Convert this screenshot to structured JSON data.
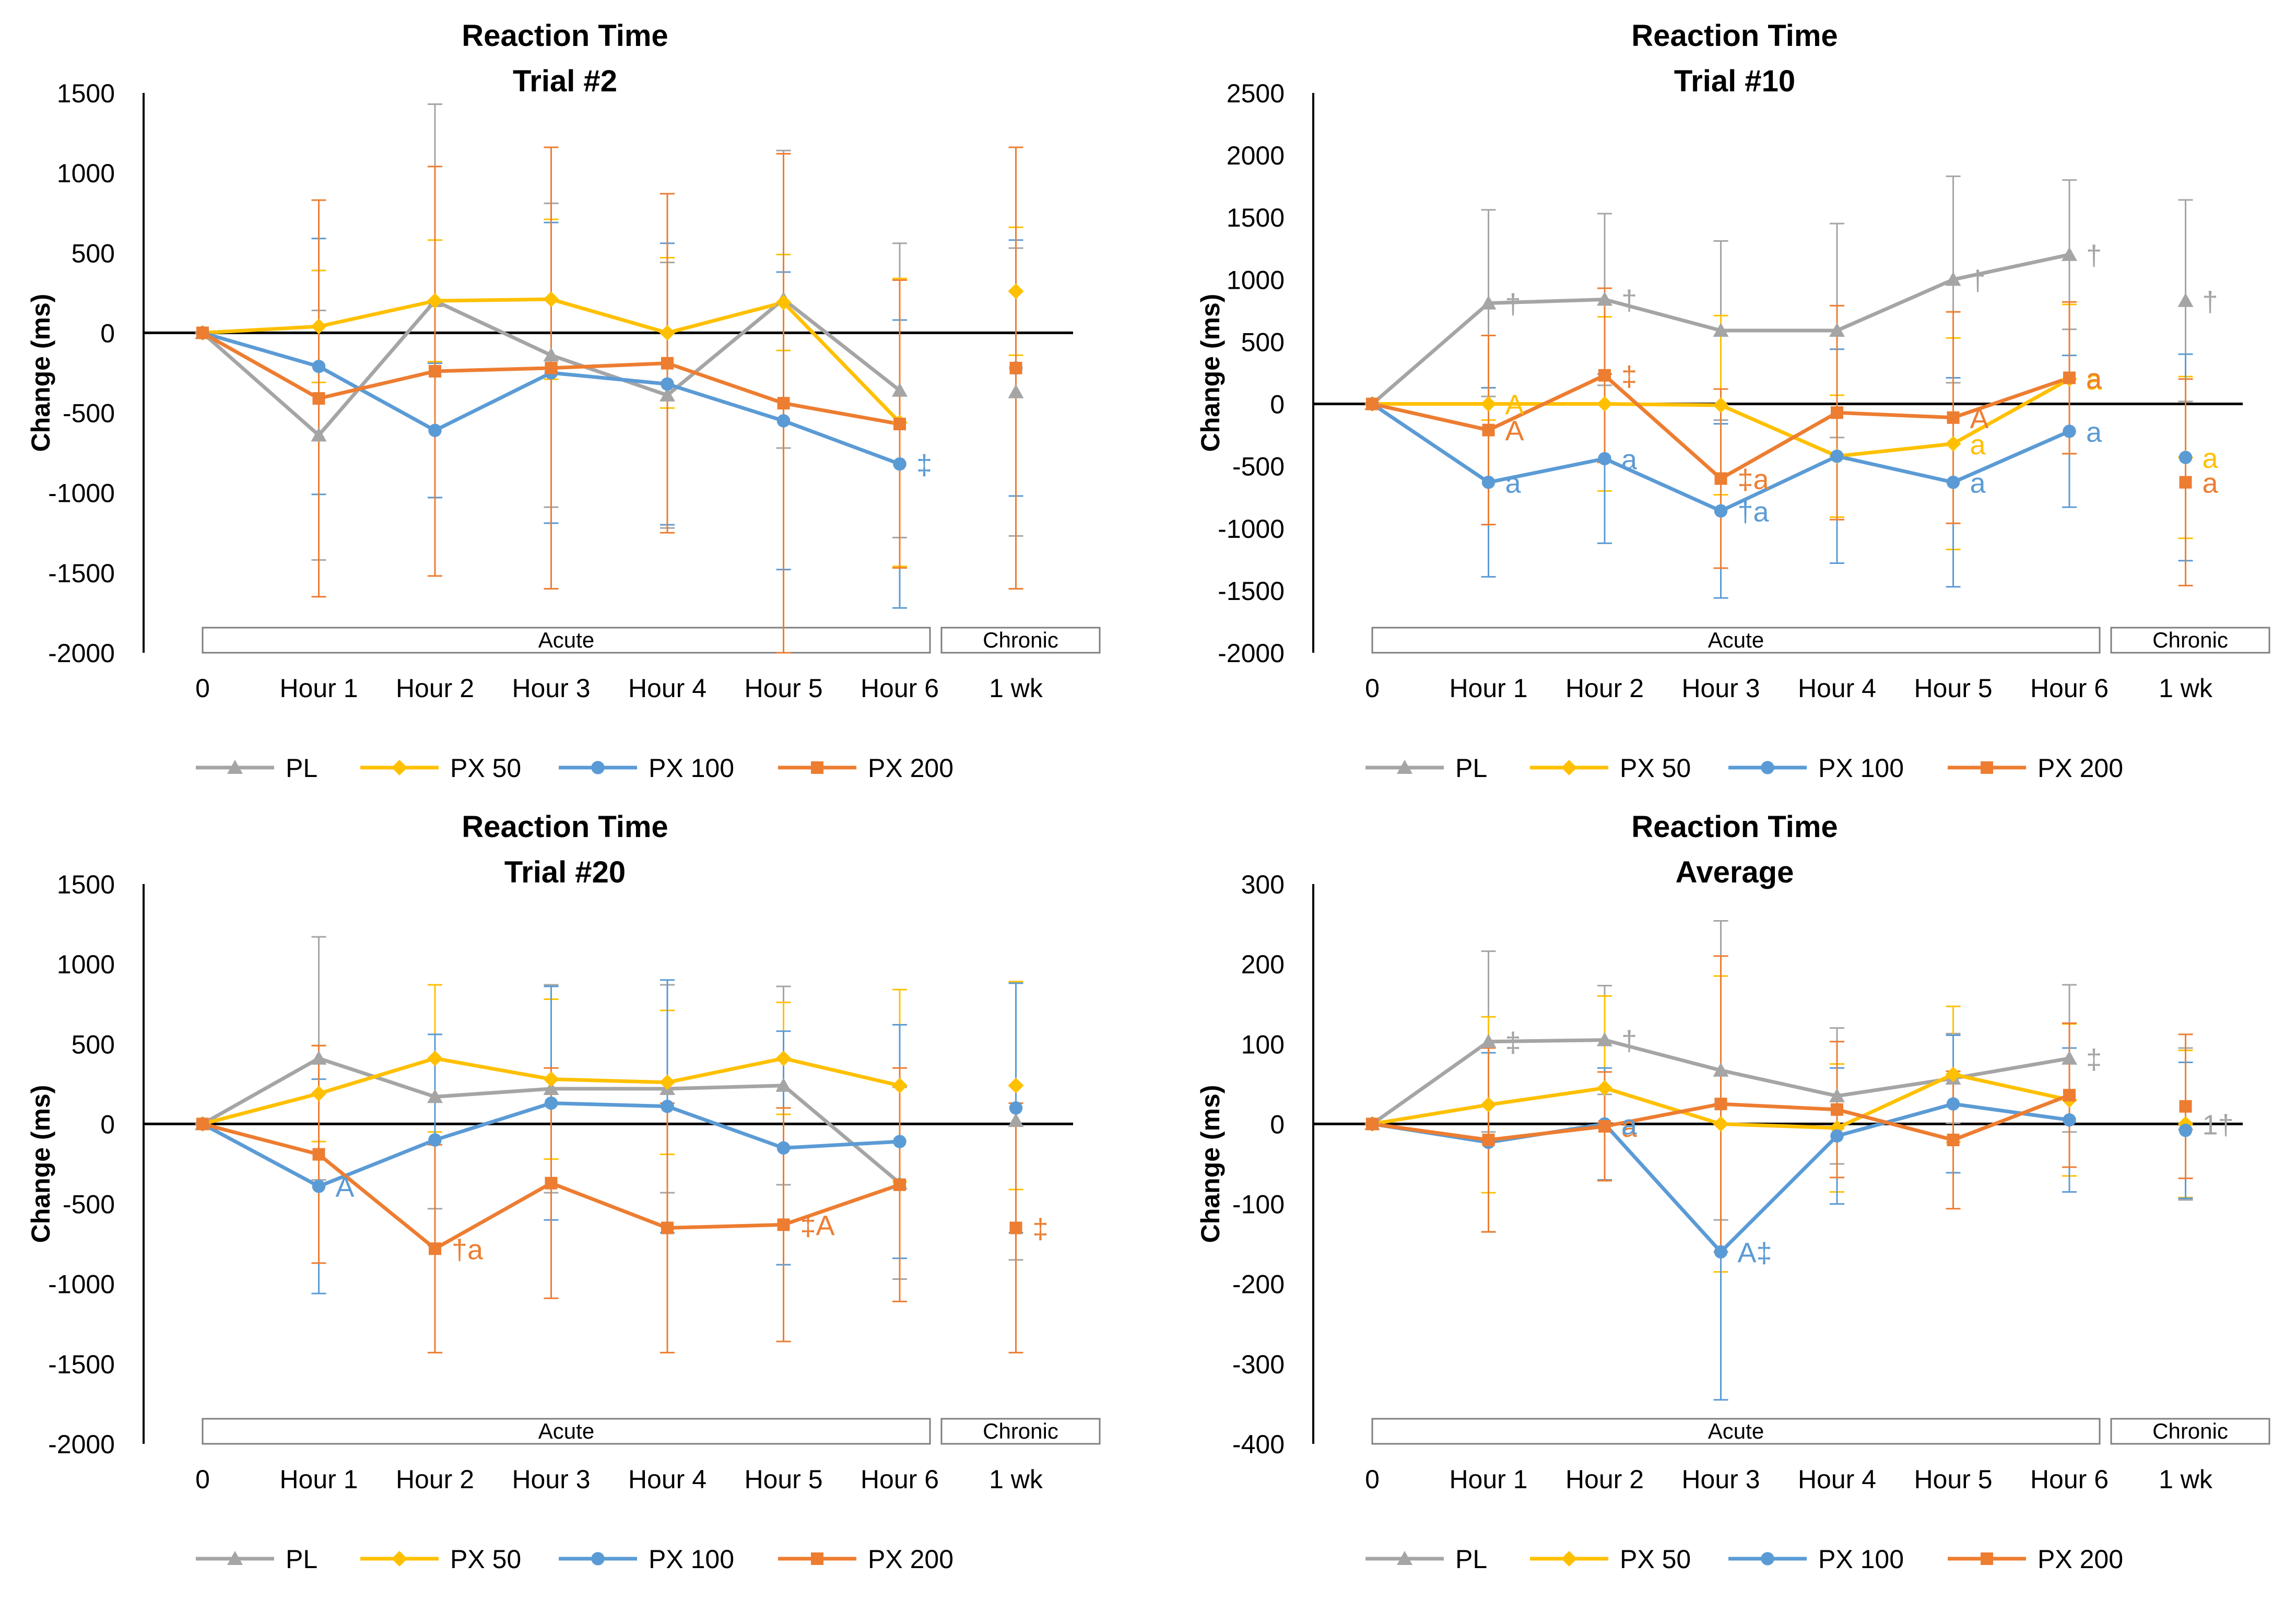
{
  "colors": {
    "PL": "#A5A5A5",
    "PX 50": "#FFC000",
    "PX 100": "#5B9BD5",
    "PX 200": "#ED7D31"
  },
  "chart_data": [
    {
      "type": "line",
      "title": "Reaction Time",
      "subtitle": "Trial #2",
      "ylabel": "Change (ms)",
      "ylim": [
        -2000,
        1500
      ],
      "yticks": [
        -2000,
        -1500,
        -1000,
        -500,
        0,
        500,
        1000,
        1500
      ],
      "categories": [
        "0",
        "Hour 1",
        "Hour 2",
        "Hour 3",
        "Hour 4",
        "Hour 5",
        "Hour 6",
        "1 wk"
      ],
      "groups": {
        "acute": "Acute",
        "chronic": "Chronic"
      },
      "series": [
        {
          "name": "PL",
          "values": [
            0,
            -640,
            200,
            -140,
            -390,
            210,
            -360,
            -370
          ],
          "err": [
            0,
            780,
            1230,
            950,
            830,
            930,
            920,
            900
          ]
        },
        {
          "name": "PX 50",
          "values": [
            0,
            40,
            200,
            210,
            0,
            190,
            -560,
            260
          ],
          "err": [
            0,
            350,
            380,
            500,
            470,
            300,
            900,
            400
          ]
        },
        {
          "name": "PX 100",
          "values": [
            0,
            -210,
            -610,
            -250,
            -320,
            -550,
            -820,
            -220
          ],
          "err": [
            0,
            800,
            420,
            940,
            880,
            930,
            900,
            800
          ]
        },
        {
          "name": "PX 200",
          "values": [
            0,
            -410,
            -240,
            -220,
            -190,
            -440,
            -570,
            -220
          ],
          "err": [
            0,
            1240,
            1280,
            1380,
            1060,
            1560,
            900,
            1380
          ]
        }
      ],
      "annotations": [
        {
          "text": "‡",
          "series": "PX 100",
          "index": 6
        }
      ]
    },
    {
      "type": "line",
      "title": "Reaction Time",
      "subtitle": "Trial #10",
      "ylabel": "Change (ms)",
      "ylim": [
        -2000,
        2500
      ],
      "yticks": [
        -2000,
        -1500,
        -1000,
        -500,
        0,
        500,
        1000,
        1500,
        2000,
        2500
      ],
      "categories": [
        "0",
        "Hour 1",
        "Hour 2",
        "Hour 3",
        "Hour 4",
        "Hour 5",
        "Hour 6",
        "1 wk"
      ],
      "groups": {
        "acute": "Acute",
        "chronic": "Chronic"
      },
      "series": [
        {
          "name": "PL",
          "values": [
            0,
            810,
            840,
            590,
            590,
            1000,
            1200,
            830
          ],
          "err": [
            0,
            750,
            690,
            720,
            860,
            830,
            600,
            810
          ]
        },
        {
          "name": "PX 50",
          "values": [
            0,
            0,
            0,
            -10,
            -420,
            -320,
            200,
            -430
          ],
          "err": [
            0,
            130,
            700,
            720,
            490,
            850,
            600,
            650
          ]
        },
        {
          "name": "PX 100",
          "values": [
            0,
            -630,
            -440,
            -860,
            -420,
            -630,
            -220,
            -430
          ],
          "err": [
            0,
            760,
            680,
            700,
            860,
            840,
            610,
            830
          ]
        },
        {
          "name": "PX 200",
          "values": [
            0,
            -210,
            230,
            -600,
            -70,
            -110,
            210,
            -630
          ],
          "err": [
            0,
            760,
            700,
            720,
            860,
            850,
            610,
            830
          ]
        }
      ],
      "annotations": [
        {
          "text": "†",
          "series": "PL",
          "index": 1
        },
        {
          "text": "†",
          "series": "PL",
          "index": 2
        },
        {
          "text": "†",
          "series": "PL",
          "index": 5
        },
        {
          "text": "†",
          "series": "PL",
          "index": 6
        },
        {
          "text": "†",
          "series": "PL",
          "index": 7
        },
        {
          "text": "A",
          "series": "PX 50",
          "index": 1
        },
        {
          "text": "a",
          "series": "PX 50",
          "index": 5
        },
        {
          "text": "a",
          "series": "PX 50",
          "index": 6
        },
        {
          "text": "a",
          "series": "PX 50",
          "index": 7
        },
        {
          "text": "a",
          "series": "PX 100",
          "index": 1
        },
        {
          "text": "a",
          "series": "PX 100",
          "index": 2
        },
        {
          "text": "†a",
          "series": "PX 100",
          "index": 3
        },
        {
          "text": "a",
          "series": "PX 100",
          "index": 5
        },
        {
          "text": "a",
          "series": "PX 100",
          "index": 6
        },
        {
          "text": "A",
          "series": "PX 200",
          "index": 1
        },
        {
          "text": "‡",
          "series": "PX 200",
          "index": 2
        },
        {
          "text": "‡a",
          "series": "PX 200",
          "index": 3
        },
        {
          "text": "A",
          "series": "PX 200",
          "index": 5
        },
        {
          "text": "a",
          "series": "PX 200",
          "index": 6
        },
        {
          "text": "a",
          "series": "PX 200",
          "index": 7
        }
      ]
    },
    {
      "type": "line",
      "title": "Reaction Time",
      "subtitle": "Trial #20",
      "ylabel": "Change (ms)",
      "ylim": [
        -2000,
        1500
      ],
      "yticks": [
        -2000,
        -1500,
        -1000,
        -500,
        0,
        500,
        1000,
        1500
      ],
      "categories": [
        "0",
        "Hour 1",
        "Hour 2",
        "Hour 3",
        "Hour 4",
        "Hour 5",
        "Hour 6",
        "1 wk"
      ],
      "groups": {
        "acute": "Acute",
        "chronic": "Chronic"
      },
      "series": [
        {
          "name": "PL",
          "values": [
            0,
            410,
            170,
            220,
            220,
            240,
            -370,
            20
          ],
          "err": [
            0,
            760,
            700,
            650,
            650,
            620,
            600,
            870
          ]
        },
        {
          "name": "PX 50",
          "values": [
            0,
            190,
            410,
            280,
            260,
            410,
            240,
            240
          ],
          "err": [
            0,
            300,
            460,
            500,
            450,
            350,
            600,
            650
          ]
        },
        {
          "name": "PX 100",
          "values": [
            0,
            -390,
            -100,
            130,
            110,
            -150,
            -110,
            100
          ],
          "err": [
            0,
            670,
            660,
            730,
            790,
            730,
            730,
            780
          ]
        },
        {
          "name": "PX 200",
          "values": [
            0,
            -190,
            -780,
            -370,
            -650,
            -630,
            -380,
            -650
          ],
          "err": [
            0,
            680,
            650,
            720,
            780,
            730,
            730,
            780
          ]
        }
      ],
      "annotations": [
        {
          "text": "A",
          "series": "PX 100",
          "index": 1
        },
        {
          "text": "†a",
          "series": "PX 200",
          "index": 2
        },
        {
          "text": "‡A",
          "series": "PX 200",
          "index": 5
        },
        {
          "text": "‡",
          "series": "PX 200",
          "index": 7
        }
      ]
    },
    {
      "type": "line",
      "title": "Reaction Time",
      "subtitle": "Average",
      "ylabel": "Change (ms)",
      "ylim": [
        -400,
        300
      ],
      "yticks": [
        -400,
        -300,
        -200,
        -100,
        0,
        100,
        200,
        300
      ],
      "categories": [
        "0",
        "Hour 1",
        "Hour 2",
        "Hour 3",
        "Hour 4",
        "Hour 5",
        "Hour 6",
        "1 wk"
      ],
      "groups": {
        "acute": "Acute",
        "chronic": "Chronic"
      },
      "series": [
        {
          "name": "PL",
          "values": [
            0,
            103,
            105,
            67,
            35,
            57,
            82,
            0
          ],
          "err": [
            0,
            113,
            68,
            187,
            85,
            56,
            92,
            95
          ]
        },
        {
          "name": "PX 50",
          "values": [
            0,
            24,
            45,
            0,
            -5,
            62,
            30,
            0
          ],
          "err": [
            0,
            110,
            115,
            185,
            80,
            85,
            95,
            92
          ]
        },
        {
          "name": "PX 100",
          "values": [
            0,
            -23,
            0,
            -160,
            -15,
            25,
            5,
            -8
          ],
          "err": [
            0,
            112,
            70,
            185,
            85,
            86,
            90,
            85
          ]
        },
        {
          "name": "PX 200",
          "values": [
            0,
            -20,
            -3,
            25,
            18,
            -20,
            36,
            22
          ],
          "err": [
            0,
            115,
            68,
            185,
            85,
            86,
            90,
            90
          ]
        }
      ],
      "annotations": [
        {
          "text": "‡",
          "series": "PL",
          "index": 1
        },
        {
          "text": "†",
          "series": "PL",
          "index": 2
        },
        {
          "text": "‡",
          "series": "PL",
          "index": 6
        },
        {
          "text": "a",
          "series": "PX 200",
          "index": 2
        },
        {
          "text": "a",
          "series": "PX 100",
          "index": 2
        },
        {
          "text": "A‡",
          "series": "PX 100",
          "index": 3
        },
        {
          "text": "1†",
          "series": "PL",
          "index": 7
        }
      ]
    }
  ]
}
